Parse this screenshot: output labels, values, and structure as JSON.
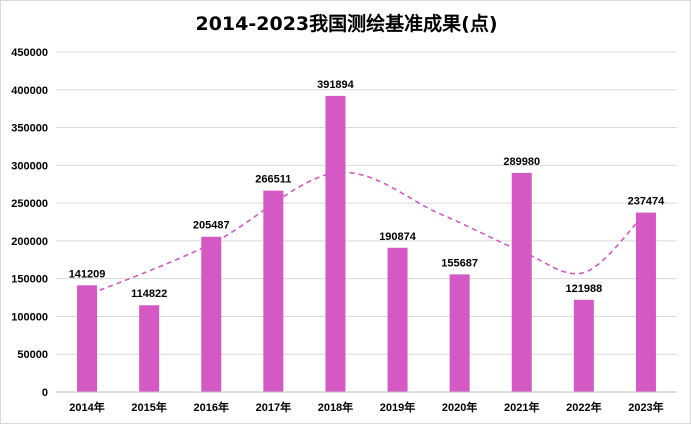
{
  "chart_data": {
    "type": "bar",
    "title": "2014-2023我国测绘基准成果(点)",
    "categories": [
      "2014年",
      "2015年",
      "2016年",
      "2017年",
      "2018年",
      "2019年",
      "2020年",
      "2021年",
      "2022年",
      "2023年"
    ],
    "values": [
      141209,
      114822,
      205487,
      266511,
      391894,
      190874,
      155687,
      289980,
      121988,
      237474
    ],
    "data_labels": [
      "141209",
      "114822",
      "205487",
      "266511",
      "391894",
      "190874",
      "155687",
      "289980",
      "121988",
      "237474"
    ],
    "ylim": [
      0,
      450000
    ],
    "yticks": [
      0,
      50000,
      100000,
      150000,
      200000,
      250000,
      300000,
      350000,
      400000,
      450000
    ],
    "ytick_labels": [
      "0",
      "50000",
      "100000",
      "150000",
      "200000",
      "250000",
      "300000",
      "350000",
      "400000",
      "450000"
    ],
    "xlabel": "",
    "ylabel": "",
    "grid": true,
    "legend": "none",
    "trendline": "smooth dashed curve",
    "colors": {
      "bar": "#d459c4",
      "trend": "#d459c4",
      "grid": "#d9d9d9"
    }
  }
}
